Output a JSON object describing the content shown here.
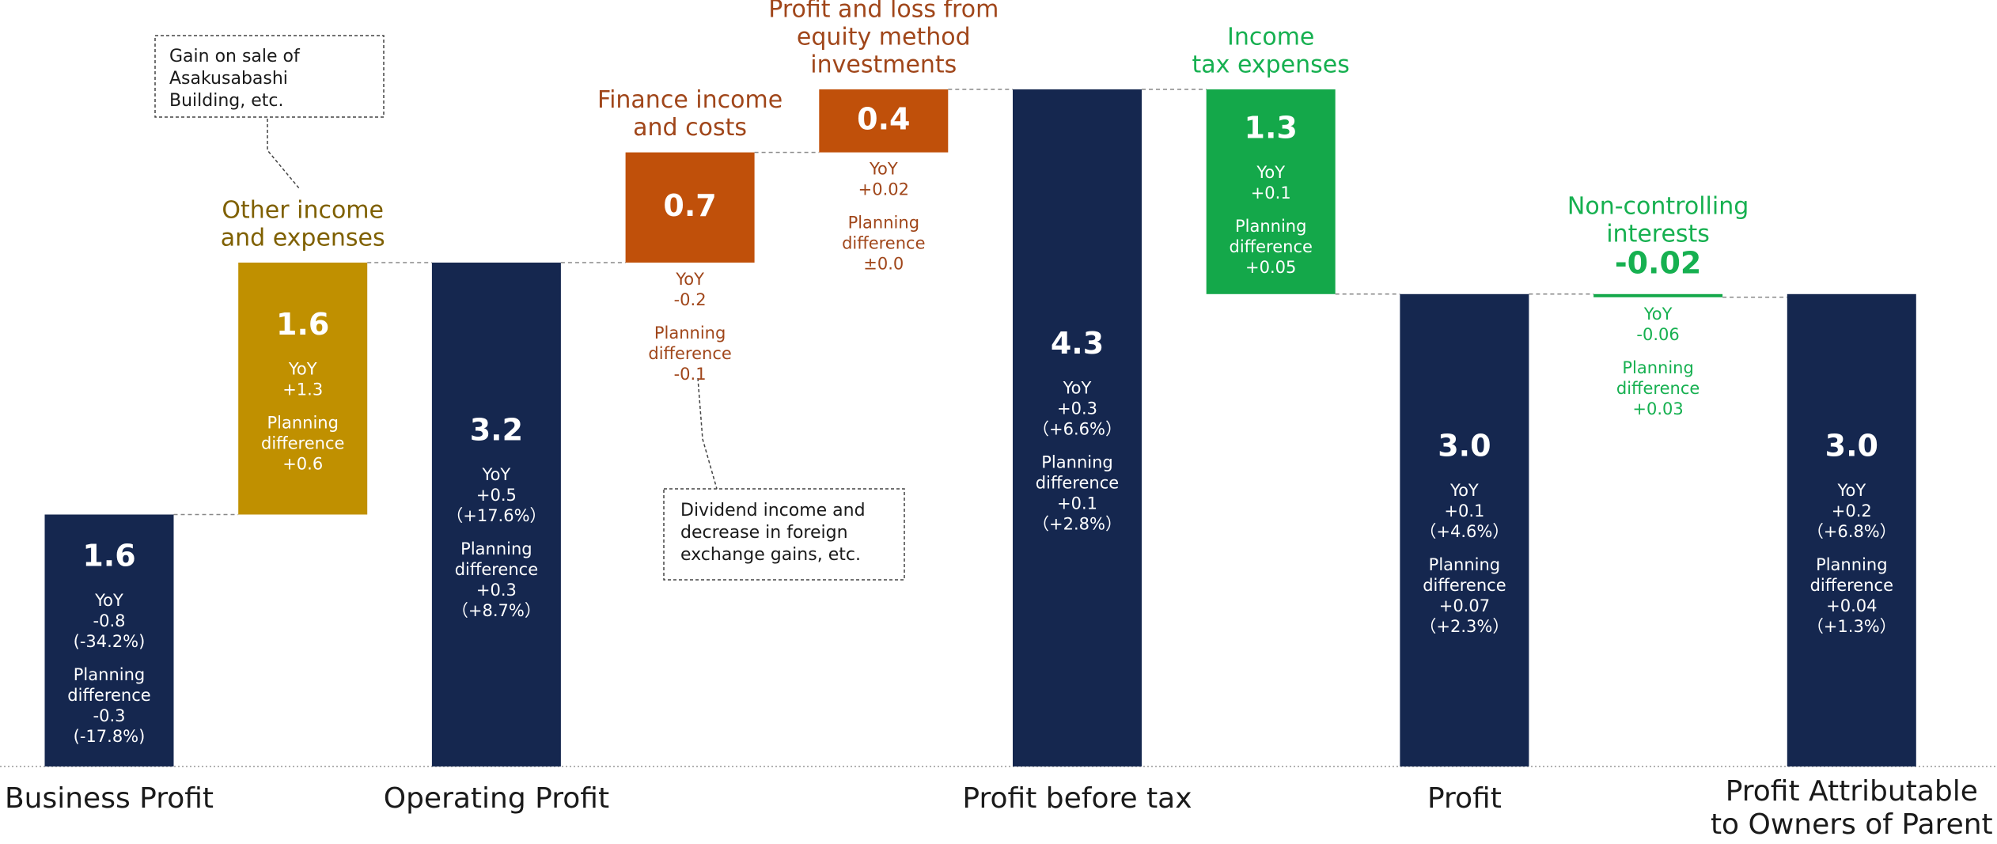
{
  "chart_data": {
    "type": "waterfall",
    "categories": [
      [
        "Business Profit"
      ],
      [
        "Other income",
        "and expenses"
      ],
      [
        "Operating Profit"
      ],
      [
        "Finance income",
        "and costs"
      ],
      [
        "Profit and loss from",
        "equity method",
        "investments"
      ],
      [
        "Profit before tax"
      ],
      [
        "Income",
        "tax expenses"
      ],
      [
        "Profit"
      ],
      [
        "Non-controlling",
        "interests"
      ],
      [
        "Profit Attributable",
        "to Owners of Parent"
      ]
    ],
    "measure": [
      "total",
      "relative",
      "total",
      "relative",
      "relative",
      "total",
      "relative",
      "total",
      "relative",
      "total"
    ],
    "values": [
      1.6,
      1.6,
      3.2,
      0.7,
      0.4,
      4.3,
      -1.3,
      3.0,
      -0.02,
      3.0
    ],
    "value_labels": [
      "1.6",
      "1.6",
      "3.2",
      "0.7",
      "0.4",
      "4.3",
      "1.3",
      "3.0",
      "-0.02",
      "3.0"
    ],
    "notes": [
      [
        [
          "YoY",
          "-0.8",
          "(-34.2%)"
        ],
        [
          "Planning",
          "difference",
          "-0.3",
          "(-17.8%)"
        ]
      ],
      [
        [
          "YoY",
          "+1.3"
        ],
        [
          "Planning",
          "difference",
          "+0.6"
        ]
      ],
      [
        [
          "YoY",
          "+0.5",
          "（+17.6%）"
        ],
        [
          "Planning",
          "difference",
          "+0.3",
          "（+8.7%）"
        ]
      ],
      [
        [
          "YoY",
          "-0.2"
        ],
        [
          "Planning",
          "difference",
          "-0.1"
        ]
      ],
      [
        [
          "YoY",
          "+0.02"
        ],
        [
          "Planning",
          "difference",
          "±0.0"
        ]
      ],
      [
        [
          "YoY",
          "+0.3",
          "（+6.6%）"
        ],
        [
          "Planning",
          "difference",
          "+0.1",
          "（+2.8%）"
        ]
      ],
      [
        [
          "YoY",
          "+0.1"
        ],
        [
          "Planning",
          "difference",
          "+0.05"
        ]
      ],
      [
        [
          "YoY",
          "+0.1",
          "（+4.6%）"
        ],
        [
          "Planning",
          "difference",
          "+0.07",
          "（+2.3%）"
        ]
      ],
      [
        [
          "YoY",
          "-0.06"
        ],
        [
          "Planning",
          "difference",
          "+0.03"
        ]
      ],
      [
        [
          "YoY",
          "+0.2",
          "（+6.8%）"
        ],
        [
          "Planning",
          "difference",
          "+0.04",
          "（+1.3%）"
        ]
      ]
    ],
    "colors": [
      "#15274f",
      "#c09000",
      "#15274f",
      "#c0500a",
      "#c0500a",
      "#15274f",
      "#14a84a",
      "#15274f",
      "#14a84a",
      "#15274f"
    ],
    "label_colors": [
      "#1a1a1a",
      "#7f6000",
      "#1a1a1a",
      "#a0461a",
      "#a0461a",
      "#1a1a1a",
      "#16b050",
      "#1a1a1a",
      "#16b050",
      "#1a1a1a"
    ],
    "annotations": [
      {
        "lines": [
          "Gain on sale of",
          "Asakusabashi",
          "Building, etc."
        ]
      },
      {
        "lines": [
          "Dividend income and",
          "decrease in foreign",
          "exchange gains, etc."
        ]
      }
    ]
  }
}
